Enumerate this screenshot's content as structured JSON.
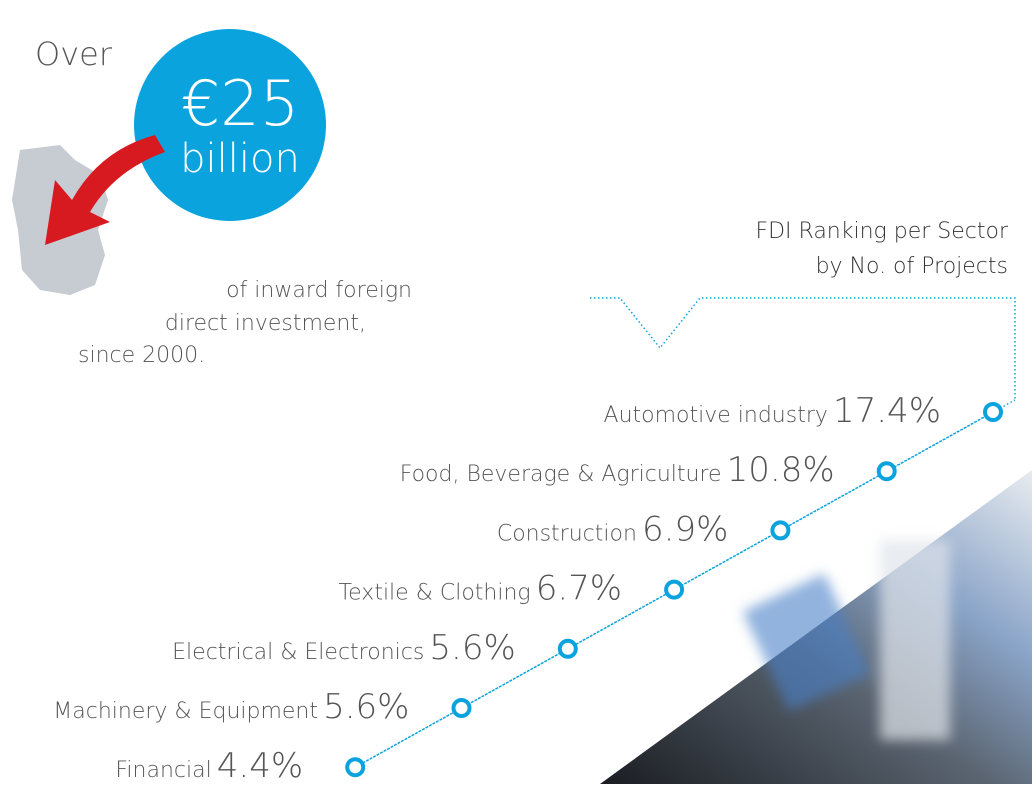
{
  "headline": {
    "prefix": "Over",
    "amount": "€25",
    "unit": "billion",
    "caption": [
      "of inward foreign",
      "direct investment,",
      "since 2000."
    ]
  },
  "ranking": {
    "title": [
      "FDI Ranking per Sector",
      "by No. of Projects"
    ],
    "items": [
      {
        "sector": "Automotive industry",
        "share": "17.4%"
      },
      {
        "sector": "Food, Beverage & Agriculture",
        "share": "10.8%"
      },
      {
        "sector": "Construction",
        "share": "6.9%"
      },
      {
        "sector": "Textile & Clothing",
        "share": "6.7%"
      },
      {
        "sector": "Electrical & Electronics",
        "share": "5.6%"
      },
      {
        "sector": "Machinery & Equipment",
        "share": "5.6%"
      },
      {
        "sector": "Financial",
        "share": "4.4%"
      }
    ]
  }
}
